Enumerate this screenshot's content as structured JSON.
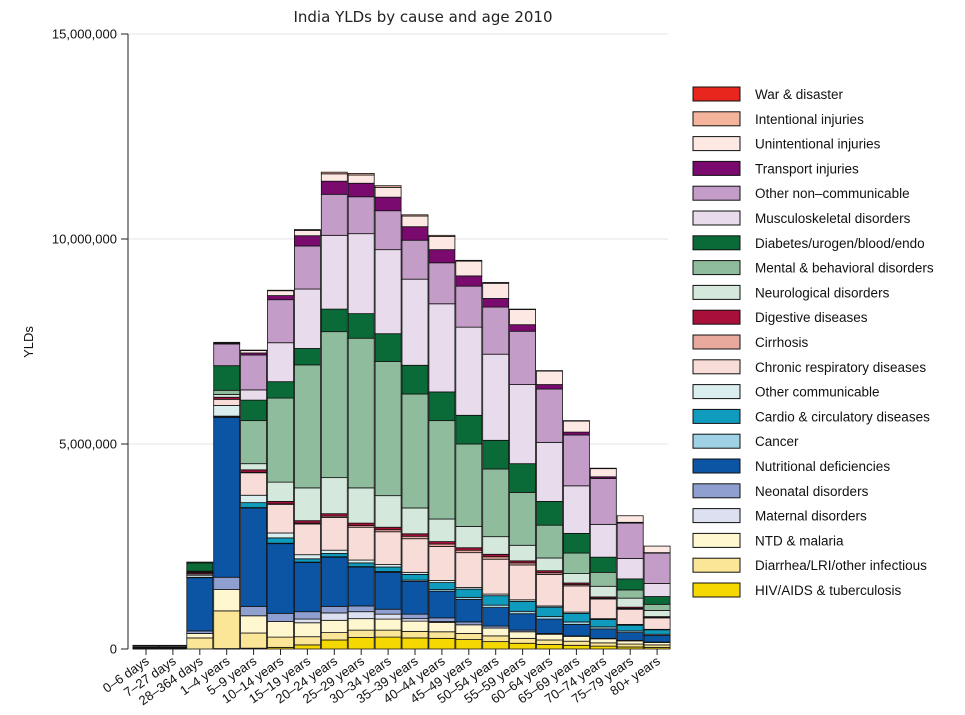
{
  "chart_data": {
    "type": "bar",
    "stacked": true,
    "title": "India YLDs by cause and age 2010",
    "xlabel": "",
    "ylabel": "YLDs",
    "ylim": [
      0,
      15000000
    ],
    "yticks": [
      0,
      5000000,
      10000000,
      15000000
    ],
    "ytick_labels": [
      "0",
      "5,000,000",
      "10,000,000",
      "15,000,000"
    ],
    "grid": true,
    "legend_position": "right",
    "categories": [
      "0–6 days",
      "7–27 days",
      "28–364 days",
      "1–4 years",
      "5–9 years",
      "10–14 years",
      "15–19 years",
      "20–24 years",
      "25–29 years",
      "30–34 years",
      "35–39 years",
      "40–44 years",
      "45–49 years",
      "50–54 years",
      "55–59 years",
      "60–64 years",
      "65–69 years",
      "70–74 years",
      "75–79 years",
      "80+ years"
    ],
    "series": [
      {
        "name": "HIV/AIDS & tuberculosis",
        "color": "#f5d800",
        "values": [
          0,
          0,
          0,
          10000,
          20000,
          40000,
          100000,
          220000,
          280000,
          290000,
          270000,
          260000,
          230000,
          180000,
          140000,
          110000,
          90000,
          70000,
          50000,
          40000
        ]
      },
      {
        "name": "Diarrhea/LRI/other infectious",
        "color": "#fbe697",
        "values": [
          10000,
          10000,
          270000,
          920000,
          370000,
          250000,
          200000,
          180000,
          180000,
          170000,
          160000,
          160000,
          150000,
          140000,
          120000,
          110000,
          100000,
          80000,
          70000,
          60000
        ]
      },
      {
        "name": "NTD & malaria",
        "color": "#fff7d0",
        "values": [
          0,
          0,
          110000,
          520000,
          420000,
          380000,
          340000,
          300000,
          280000,
          270000,
          250000,
          230000,
          210000,
          190000,
          160000,
          140000,
          120000,
          100000,
          80000,
          60000
        ]
      },
      {
        "name": "Maternal disorders",
        "color": "#dde0f0",
        "values": [
          0,
          0,
          0,
          0,
          0,
          0,
          90000,
          180000,
          170000,
          120000,
          60000,
          20000,
          0,
          0,
          0,
          0,
          0,
          0,
          0,
          0
        ]
      },
      {
        "name": "Neonatal disorders",
        "color": "#8fa0d0",
        "values": [
          20000,
          20000,
          60000,
          300000,
          230000,
          200000,
          180000,
          160000,
          140000,
          120000,
          110000,
          90000,
          70000,
          50000,
          40000,
          20000,
          10000,
          10000,
          10000,
          10000
        ]
      },
      {
        "name": "Nutritional deficiencies",
        "color": "#0b55a4",
        "values": [
          10000,
          10000,
          1300000,
          3900000,
          2400000,
          1700000,
          1200000,
          1200000,
          950000,
          900000,
          800000,
          650000,
          550000,
          450000,
          400000,
          350000,
          280000,
          230000,
          190000,
          160000
        ]
      },
      {
        "name": "Cancer",
        "color": "#9ed2e4",
        "values": [
          0,
          0,
          0,
          10000,
          10000,
          10000,
          10000,
          10000,
          10000,
          20000,
          30000,
          40000,
          50000,
          60000,
          60000,
          60000,
          60000,
          50000,
          40000,
          30000
        ]
      },
      {
        "name": "Cardio & circulatory diseases",
        "color": "#0e9bbd",
        "values": [
          0,
          0,
          10000,
          20000,
          120000,
          130000,
          80000,
          80000,
          90000,
          110000,
          140000,
          170000,
          200000,
          230000,
          240000,
          230000,
          210000,
          180000,
          140000,
          110000
        ]
      },
      {
        "name": "Other communicable",
        "color": "#daeef0",
        "values": [
          0,
          0,
          50000,
          260000,
          180000,
          120000,
          100000,
          80000,
          70000,
          60000,
          50000,
          50000,
          40000,
          40000,
          40000,
          30000,
          30000,
          20000,
          20000,
          10000
        ]
      },
      {
        "name": "Chronic respiratory diseases",
        "color": "#f8dcd8",
        "values": [
          0,
          0,
          30000,
          150000,
          550000,
          700000,
          750000,
          800000,
          800000,
          800000,
          820000,
          830000,
          850000,
          850000,
          850000,
          770000,
          640000,
          480000,
          370000,
          280000
        ]
      },
      {
        "name": "Cirrhosis",
        "color": "#e8a89c",
        "values": [
          0,
          0,
          0,
          0,
          10000,
          10000,
          20000,
          30000,
          40000,
          50000,
          60000,
          60000,
          60000,
          60000,
          50000,
          40000,
          30000,
          20000,
          20000,
          10000
        ]
      },
      {
        "name": "Digestive diseases",
        "color": "#a8103a",
        "values": [
          0,
          0,
          30000,
          50000,
          60000,
          60000,
          60000,
          60000,
          60000,
          60000,
          60000,
          60000,
          60000,
          60000,
          50000,
          50000,
          40000,
          30000,
          30000,
          20000
        ]
      },
      {
        "name": "Neurological disorders",
        "color": "#d4e8dc",
        "values": [
          0,
          0,
          20000,
          70000,
          150000,
          470000,
          800000,
          880000,
          860000,
          770000,
          630000,
          550000,
          520000,
          430000,
          380000,
          310000,
          230000,
          260000,
          220000,
          150000
        ]
      },
      {
        "name": "Mental & behavioral disorders",
        "color": "#8fbc9c",
        "values": [
          0,
          0,
          20000,
          100000,
          1050000,
          2050000,
          3000000,
          3560000,
          3650000,
          3270000,
          2780000,
          2400000,
          2010000,
          1650000,
          1290000,
          800000,
          500000,
          340000,
          200000,
          150000
        ]
      },
      {
        "name": "Diabetes/urogen/blood/endo",
        "color": "#0a6a38",
        "values": [
          10000,
          10000,
          200000,
          600000,
          500000,
          400000,
          400000,
          550000,
          600000,
          680000,
          700000,
          700000,
          700000,
          700000,
          700000,
          580000,
          480000,
          370000,
          270000,
          190000
        ]
      },
      {
        "name": "Musculoskeletal disorders",
        "color": "#e8dcec",
        "values": [
          0,
          0,
          0,
          0,
          250000,
          950000,
          1450000,
          1800000,
          1950000,
          2050000,
          2100000,
          2150000,
          2150000,
          2100000,
          1930000,
          1440000,
          1160000,
          800000,
          500000,
          320000
        ]
      },
      {
        "name": "Other non–communicable",
        "color": "#c49cc8",
        "values": [
          30000,
          30000,
          0,
          530000,
          850000,
          1050000,
          1050000,
          1000000,
          900000,
          950000,
          950000,
          1000000,
          1000000,
          1150000,
          1300000,
          1300000,
          1240000,
          1120000,
          860000,
          740000
        ]
      },
      {
        "name": "Transport injuries",
        "color": "#7b0a6e",
        "values": [
          0,
          0,
          0,
          20000,
          50000,
          100000,
          250000,
          320000,
          330000,
          330000,
          330000,
          320000,
          250000,
          210000,
          160000,
          110000,
          70000,
          40000,
          20000,
          10000
        ]
      },
      {
        "name": "Unintentional injuries",
        "color": "#fde8e4",
        "values": [
          10000,
          10000,
          20000,
          20000,
          60000,
          120000,
          130000,
          180000,
          200000,
          240000,
          260000,
          320000,
          360000,
          370000,
          370000,
          330000,
          270000,
          200000,
          160000,
          160000
        ]
      },
      {
        "name": "Intentional injuries",
        "color": "#f5b49c",
        "values": [
          0,
          0,
          0,
          0,
          10000,
          10000,
          20000,
          40000,
          40000,
          40000,
          30000,
          30000,
          20000,
          20000,
          10000,
          10000,
          10000,
          10000,
          0,
          0
        ]
      },
      {
        "name": "War & disaster",
        "color": "#e8261e",
        "values": [
          0,
          0,
          0,
          0,
          0,
          0,
          0,
          0,
          0,
          0,
          0,
          0,
          0,
          0,
          0,
          0,
          0,
          0,
          0,
          0
        ]
      }
    ]
  }
}
